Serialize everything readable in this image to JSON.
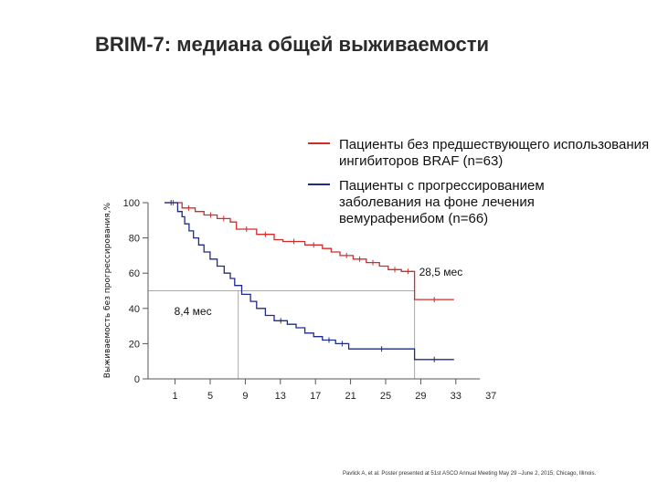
{
  "title": "BRIM-7: медиана общей выживаемости",
  "footnote": "Pavlick A, et al. Poster presented at 51st ASCO Annual Meeting May 29 –June 2, 2015; Chicago, Illinois.",
  "chart_data": {
    "type": "line",
    "title": "",
    "xlabel": "",
    "ylabel": "Выживаемость без прогрессирования,%",
    "xlim": [
      0,
      37
    ],
    "ylim": [
      0,
      100
    ],
    "x_ticks": [
      1,
      5,
      9,
      13,
      17,
      21,
      25,
      29,
      33,
      37
    ],
    "y_ticks": [
      0,
      20,
      40,
      60,
      80,
      100
    ],
    "grid": false,
    "legend": "top-right",
    "annotations": [
      {
        "text": "28,5 мес",
        "x": 28.5,
        "y": 50
      },
      {
        "text": "8,4 мес",
        "x": 8.4,
        "y": 50
      }
    ],
    "series": [
      {
        "name": "Пациенты без предшествующего использования ингибиторов BRAF (n=63)",
        "color": "#d42a2a",
        "points": [
          [
            0,
            100
          ],
          [
            2,
            100
          ],
          [
            2,
            97
          ],
          [
            3.5,
            97
          ],
          [
            3.5,
            95
          ],
          [
            4.5,
            95
          ],
          [
            4.5,
            93
          ],
          [
            6,
            93
          ],
          [
            6,
            91
          ],
          [
            7.5,
            91
          ],
          [
            7.5,
            89
          ],
          [
            8.2,
            89
          ],
          [
            8.2,
            85
          ],
          [
            10.5,
            85
          ],
          [
            10.5,
            82
          ],
          [
            12.5,
            82
          ],
          [
            12.5,
            79
          ],
          [
            13.5,
            79
          ],
          [
            13.5,
            78
          ],
          [
            16,
            78
          ],
          [
            16,
            76
          ],
          [
            18,
            76
          ],
          [
            18,
            74
          ],
          [
            19,
            74
          ],
          [
            19,
            72
          ],
          [
            20,
            72
          ],
          [
            20,
            70
          ],
          [
            21.5,
            70
          ],
          [
            21.5,
            68
          ],
          [
            23,
            68
          ],
          [
            23,
            66
          ],
          [
            24.5,
            66
          ],
          [
            24.5,
            64
          ],
          [
            25.5,
            64
          ],
          [
            25.5,
            62
          ],
          [
            27,
            62
          ],
          [
            27,
            61
          ],
          [
            28.5,
            61
          ],
          [
            28.5,
            45
          ],
          [
            33,
            45
          ]
        ]
      },
      {
        "name": "Пациенты с прогрессированием заболевания на фоне лечения вемурафенибом (n=66)",
        "color": "#1f2a8c",
        "points": [
          [
            0,
            100
          ],
          [
            1.5,
            100
          ],
          [
            1.5,
            95
          ],
          [
            2,
            95
          ],
          [
            2,
            92
          ],
          [
            2.3,
            92
          ],
          [
            2.3,
            88
          ],
          [
            2.8,
            88
          ],
          [
            2.8,
            84
          ],
          [
            3.3,
            84
          ],
          [
            3.3,
            80
          ],
          [
            3.9,
            80
          ],
          [
            3.9,
            76
          ],
          [
            4.5,
            76
          ],
          [
            4.5,
            72
          ],
          [
            5.2,
            72
          ],
          [
            5.2,
            68
          ],
          [
            6,
            68
          ],
          [
            6,
            64
          ],
          [
            6.8,
            64
          ],
          [
            6.8,
            60
          ],
          [
            7.5,
            60
          ],
          [
            7.5,
            57
          ],
          [
            8,
            57
          ],
          [
            8,
            53
          ],
          [
            8.8,
            53
          ],
          [
            8.8,
            48
          ],
          [
            9.8,
            48
          ],
          [
            9.8,
            44
          ],
          [
            10.5,
            44
          ],
          [
            10.5,
            40
          ],
          [
            11.5,
            40
          ],
          [
            11.5,
            36
          ],
          [
            12.5,
            36
          ],
          [
            12.5,
            33
          ],
          [
            14,
            33
          ],
          [
            14,
            31
          ],
          [
            15,
            31
          ],
          [
            15,
            29
          ],
          [
            16,
            29
          ],
          [
            16,
            26
          ],
          [
            17,
            26
          ],
          [
            17,
            24
          ],
          [
            18,
            24
          ],
          [
            18,
            22
          ],
          [
            19.5,
            22
          ],
          [
            19.5,
            20
          ],
          [
            21,
            20
          ],
          [
            21,
            17
          ],
          [
            28.5,
            17
          ],
          [
            28.5,
            11
          ],
          [
            33,
            11
          ]
        ]
      }
    ]
  }
}
